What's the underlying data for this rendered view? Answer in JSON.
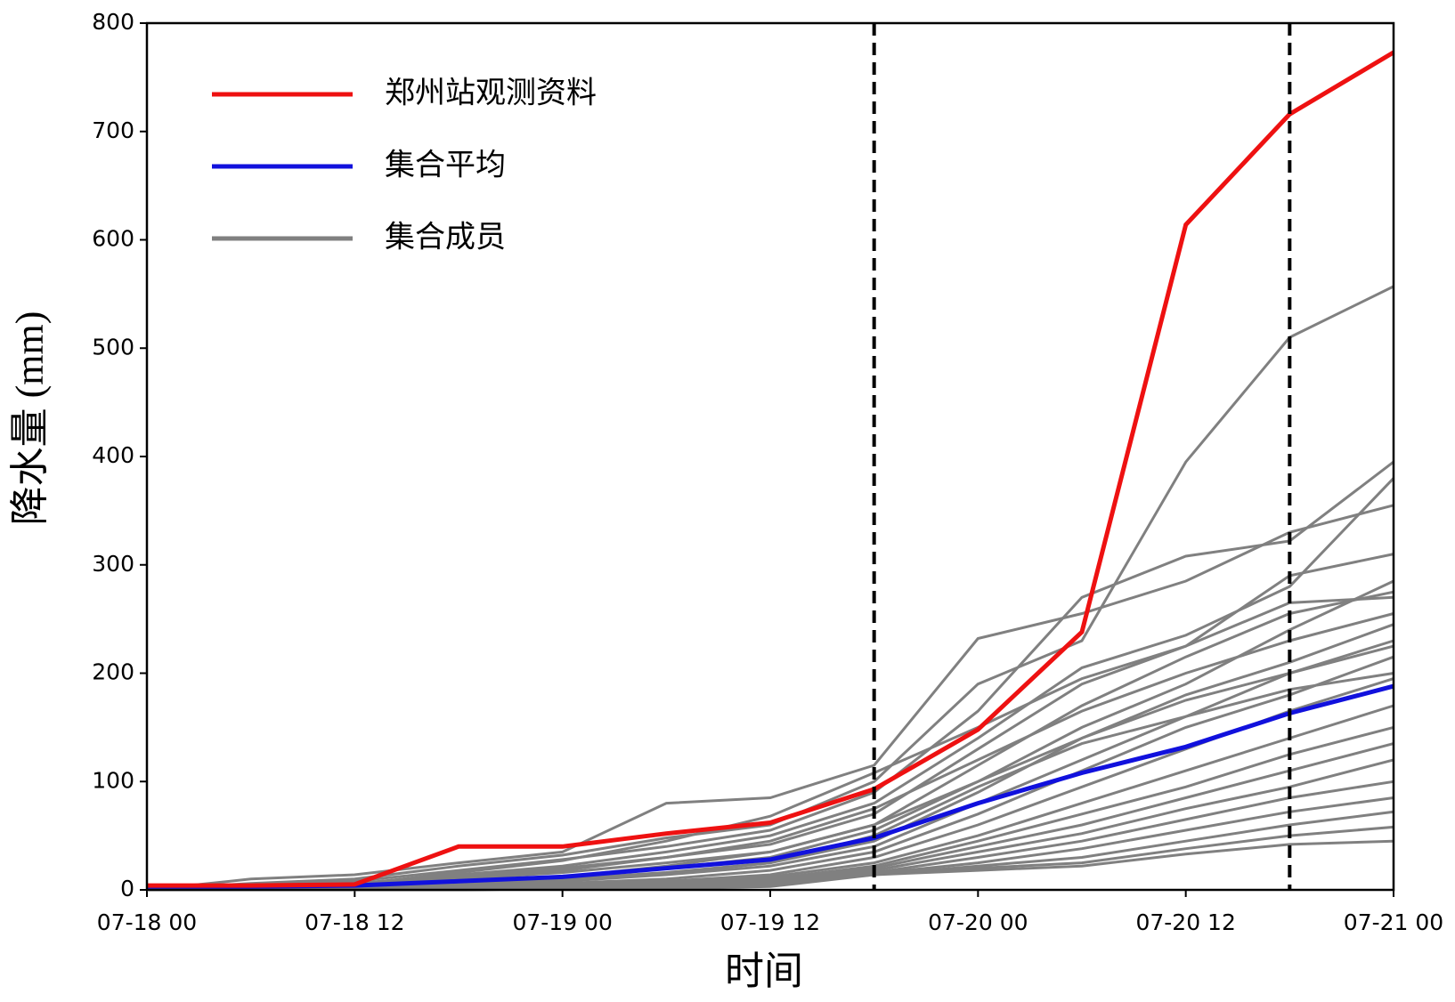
{
  "chart_data": {
    "type": "line",
    "x_label": "时间",
    "y_label": "降水量 (mm)",
    "categories": [
      "07-18 00",
      null,
      "07-18 12",
      null,
      "07-19 00",
      null,
      "07-19 12",
      null,
      "07-20 00",
      null,
      "07-20 12",
      null,
      "07-21 00"
    ],
    "ylim": [
      0,
      800
    ],
    "yticks": [
      0,
      100,
      200,
      300,
      400,
      500,
      600,
      700,
      800
    ],
    "vlines": [
      7,
      11
    ],
    "series": [
      {
        "name": "郑州站观测资料",
        "color": "#ee1111",
        "values": [
          4,
          4,
          5,
          40,
          40,
          52,
          62,
          93,
          148,
          238,
          614,
          716,
          773
        ]
      },
      {
        "name": "集合平均",
        "color": "#1111dd",
        "values": [
          3,
          3,
          4,
          8,
          12,
          20,
          28,
          48,
          80,
          108,
          132,
          163,
          188
        ]
      },
      {
        "name": "集合成员",
        "color": "#808080",
        "members": [
          [
            0,
            10,
            14,
            25,
            35,
            80,
            85,
            115,
            232,
            255,
            285,
            330,
            355
          ],
          [
            0,
            6,
            10,
            22,
            32,
            48,
            60,
            100,
            190,
            230,
            395,
            510,
            557
          ],
          [
            0,
            4,
            8,
            18,
            28,
            40,
            55,
            90,
            165,
            270,
            308,
            322,
            395
          ],
          [
            0,
            3,
            6,
            14,
            22,
            35,
            50,
            80,
            140,
            205,
            235,
            280,
            380
          ],
          [
            0,
            2,
            5,
            12,
            20,
            30,
            42,
            70,
            130,
            190,
            225,
            290,
            310
          ],
          [
            0,
            2,
            4,
            10,
            16,
            25,
            35,
            60,
            115,
            170,
            215,
            255,
            275
          ],
          [
            0,
            1,
            3,
            8,
            12,
            20,
            30,
            55,
            100,
            150,
            190,
            240,
            285
          ],
          [
            0,
            1,
            2,
            6,
            10,
            16,
            25,
            45,
            90,
            140,
            180,
            210,
            245
          ],
          [
            0,
            1,
            2,
            5,
            8,
            14,
            22,
            40,
            80,
            120,
            160,
            200,
            230
          ],
          [
            0,
            0,
            1,
            4,
            6,
            10,
            18,
            35,
            70,
            110,
            150,
            180,
            215
          ],
          [
            0,
            0,
            1,
            3,
            5,
            8,
            14,
            30,
            60,
            95,
            130,
            165,
            195
          ],
          [
            0,
            0,
            1,
            3,
            4,
            7,
            12,
            25,
            50,
            80,
            110,
            140,
            170
          ],
          [
            0,
            0,
            1,
            2,
            3,
            6,
            10,
            22,
            45,
            70,
            95,
            125,
            150
          ],
          [
            0,
            0,
            0,
            2,
            3,
            5,
            9,
            20,
            40,
            60,
            85,
            110,
            135
          ],
          [
            0,
            0,
            0,
            1,
            2,
            4,
            8,
            18,
            35,
            52,
            75,
            95,
            120
          ],
          [
            0,
            0,
            0,
            1,
            2,
            3,
            7,
            16,
            30,
            45,
            65,
            85,
            100
          ],
          [
            0,
            0,
            0,
            1,
            2,
            3,
            6,
            15,
            25,
            38,
            55,
            72,
            85
          ],
          [
            0,
            0,
            0,
            1,
            1,
            2,
            5,
            14,
            22,
            30,
            45,
            60,
            72
          ],
          [
            0,
            0,
            0,
            0,
            1,
            2,
            4,
            15,
            20,
            25,
            38,
            50,
            58
          ],
          [
            0,
            0,
            0,
            0,
            1,
            1,
            3,
            14,
            18,
            22,
            33,
            42,
            45
          ],
          [
            0,
            2,
            5,
            16,
            27,
            45,
            68,
            108,
            150,
            195,
            225,
            265,
            270
          ],
          [
            0,
            1,
            3,
            10,
            18,
            30,
            45,
            75,
            120,
            165,
            200,
            230,
            255
          ],
          [
            0,
            1,
            2,
            7,
            12,
            22,
            35,
            60,
            100,
            140,
            175,
            200,
            225
          ],
          [
            0,
            0,
            1,
            4,
            8,
            15,
            25,
            50,
            95,
            135,
            160,
            185,
            200
          ]
        ]
      }
    ]
  }
}
